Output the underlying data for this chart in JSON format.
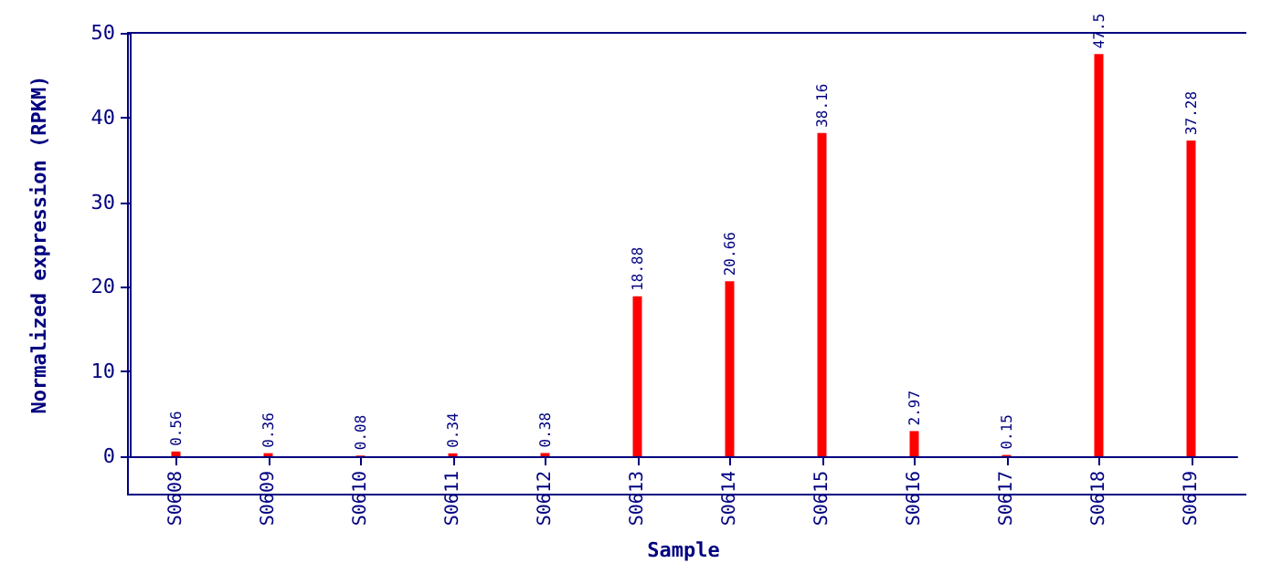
{
  "chart_data": {
    "type": "bar",
    "xlabel": "Sample",
    "ylabel": "Normalized expression (RPKM)",
    "categories": [
      "S0608",
      "S0609",
      "S0610",
      "S0611",
      "S0612",
      "S0613",
      "S0614",
      "S0615",
      "S0616",
      "S0617",
      "S0618",
      "S0619"
    ],
    "values": [
      0.56,
      0.36,
      0.08,
      0.34,
      0.38,
      18.88,
      20.66,
      38.16,
      2.97,
      0.15,
      47.5,
      37.28
    ],
    "color": "#ff0000",
    "ylim": [
      0,
      50
    ],
    "yticks": [
      0,
      10,
      20,
      30,
      40,
      50
    ],
    "grid": false,
    "data_labels": true
  }
}
